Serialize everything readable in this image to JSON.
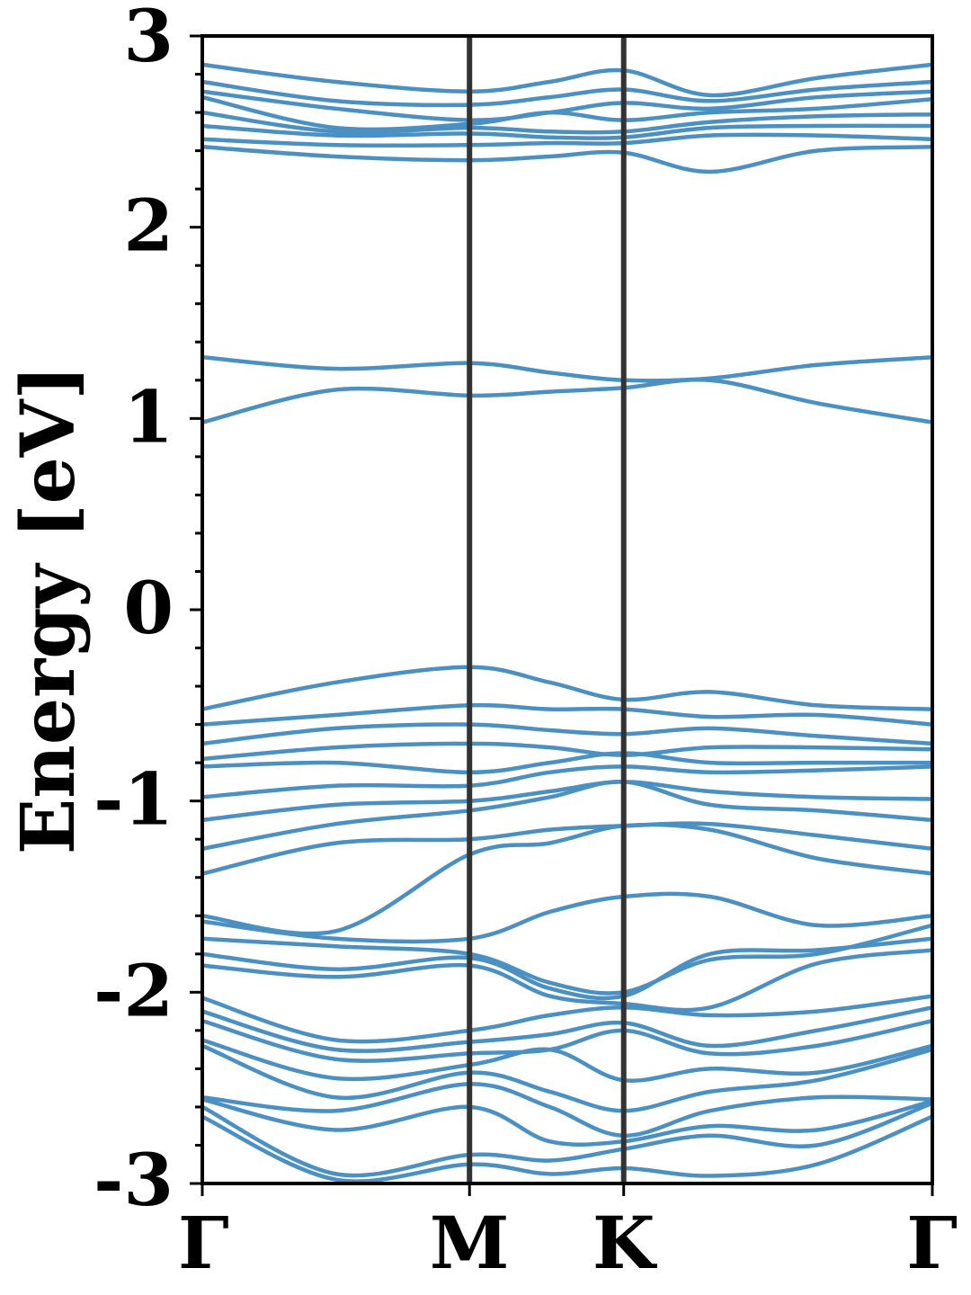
{
  "chart_data": {
    "type": "line",
    "ylabel": "Energy [eV]",
    "xlabel": "",
    "ylim": [
      -3,
      3
    ],
    "yticks": [
      3,
      2,
      1,
      0,
      -1,
      -2,
      -3
    ],
    "yticks_minor_step": 0.2,
    "grid": false,
    "kpoints": [
      {
        "label": "Γ",
        "x": 0.0
      },
      {
        "label": "M",
        "x": 1.0
      },
      {
        "label": "K",
        "x": 1.577
      },
      {
        "label": "Γ",
        "x": 2.732
      }
    ],
    "colors": {
      "band": "#4a90c2",
      "kline": "#333333",
      "axis": "#000000"
    },
    "series": [
      {
        "x": [
          0,
          0.5,
          1.0,
          1.3,
          1.577,
          1.9,
          2.3,
          2.732
        ],
        "values": [
          2.85,
          2.76,
          2.71,
          2.76,
          2.82,
          2.69,
          2.78,
          2.85
        ]
      },
      {
        "x": [
          0,
          0.5,
          1.0,
          1.3,
          1.577,
          1.9,
          2.3,
          2.732
        ],
        "values": [
          2.76,
          2.66,
          2.64,
          2.68,
          2.72,
          2.66,
          2.72,
          2.76
        ]
      },
      {
        "x": [
          0,
          0.5,
          1.0,
          1.3,
          1.577,
          1.9,
          2.3,
          2.732
        ],
        "values": [
          2.71,
          2.62,
          2.56,
          2.6,
          2.65,
          2.62,
          2.68,
          2.71
        ]
      },
      {
        "x": [
          0,
          0.5,
          1.0,
          1.3,
          1.577,
          1.9,
          2.3,
          2.732
        ],
        "values": [
          2.68,
          2.52,
          2.54,
          2.6,
          2.56,
          2.6,
          2.62,
          2.67
        ]
      },
      {
        "x": [
          0,
          0.5,
          1.0,
          1.3,
          1.577,
          1.9,
          2.3,
          2.732
        ],
        "values": [
          2.6,
          2.5,
          2.52,
          2.5,
          2.5,
          2.55,
          2.58,
          2.59
        ]
      },
      {
        "x": [
          0,
          0.5,
          1.0,
          1.3,
          1.577,
          1.9,
          2.3,
          2.732
        ],
        "values": [
          2.53,
          2.48,
          2.49,
          2.47,
          2.47,
          2.52,
          2.53,
          2.53
        ]
      },
      {
        "x": [
          0,
          0.5,
          1.0,
          1.3,
          1.577,
          1.9,
          2.3,
          2.732
        ],
        "values": [
          2.46,
          2.43,
          2.43,
          2.44,
          2.44,
          2.48,
          2.48,
          2.46
        ]
      },
      {
        "x": [
          0,
          0.5,
          1.0,
          1.3,
          1.577,
          1.9,
          2.3,
          2.732
        ],
        "values": [
          2.42,
          2.37,
          2.35,
          2.37,
          2.39,
          2.29,
          2.4,
          2.42
        ]
      },
      {
        "x": [
          0,
          0.5,
          1.0,
          1.3,
          1.577,
          1.9,
          2.3,
          2.732
        ],
        "values": [
          1.32,
          1.26,
          1.29,
          1.24,
          1.2,
          1.21,
          1.28,
          1.32
        ]
      },
      {
        "x": [
          0,
          0.5,
          1.0,
          1.3,
          1.577,
          1.9,
          2.3,
          2.732
        ],
        "values": [
          0.98,
          1.15,
          1.12,
          1.14,
          1.16,
          1.2,
          1.08,
          0.98
        ]
      },
      {
        "x": [
          0,
          0.5,
          1.0,
          1.3,
          1.577,
          1.9,
          2.3,
          2.732
        ],
        "values": [
          -0.52,
          -0.38,
          -0.3,
          -0.38,
          -0.47,
          -0.43,
          -0.5,
          -0.52
        ]
      },
      {
        "x": [
          0,
          0.5,
          1.0,
          1.3,
          1.577,
          1.9,
          2.3,
          2.732
        ],
        "values": [
          -0.6,
          -0.55,
          -0.5,
          -0.52,
          -0.52,
          -0.56,
          -0.55,
          -0.6
        ]
      },
      {
        "x": [
          0,
          0.5,
          1.0,
          1.3,
          1.577,
          1.9,
          2.3,
          2.732
        ],
        "values": [
          -0.7,
          -0.62,
          -0.6,
          -0.63,
          -0.65,
          -0.62,
          -0.66,
          -0.7
        ]
      },
      {
        "x": [
          0,
          0.5,
          1.0,
          1.3,
          1.577,
          1.9,
          2.3,
          2.732
        ],
        "values": [
          -0.78,
          -0.72,
          -0.7,
          -0.72,
          -0.76,
          -0.72,
          -0.72,
          -0.73
        ]
      },
      {
        "x": [
          0,
          0.5,
          1.0,
          1.3,
          1.577,
          1.9,
          2.3,
          2.732
        ],
        "values": [
          -0.82,
          -0.8,
          -0.85,
          -0.8,
          -0.75,
          -0.8,
          -0.8,
          -0.8
        ]
      },
      {
        "x": [
          0,
          0.5,
          1.0,
          1.3,
          1.577,
          1.9,
          2.3,
          2.732
        ],
        "values": [
          -0.98,
          -0.92,
          -0.92,
          -0.85,
          -0.82,
          -0.85,
          -0.84,
          -0.82
        ]
      },
      {
        "x": [
          0,
          0.5,
          1.0,
          1.3,
          1.577,
          1.9,
          2.3,
          2.732
        ],
        "values": [
          -1.1,
          -1.02,
          -1.0,
          -0.95,
          -0.9,
          -0.95,
          -0.98,
          -0.99
        ]
      },
      {
        "x": [
          0,
          0.5,
          1.0,
          1.3,
          1.577,
          1.9,
          2.3,
          2.732
        ],
        "values": [
          -1.25,
          -1.12,
          -1.05,
          -0.98,
          -0.9,
          -1.02,
          -1.05,
          -1.1
        ]
      },
      {
        "x": [
          0,
          0.5,
          1.0,
          1.3,
          1.577,
          1.9,
          2.3,
          2.732
        ],
        "values": [
          -1.38,
          -1.22,
          -1.2,
          -1.15,
          -1.13,
          -1.12,
          -1.18,
          -1.25
        ]
      },
      {
        "x": [
          0,
          0.5,
          1.0,
          1.3,
          1.577,
          1.9,
          2.3,
          2.732
        ],
        "values": [
          -1.6,
          -1.68,
          -1.28,
          -1.22,
          -1.13,
          -1.15,
          -1.3,
          -1.38
        ]
      },
      {
        "x": [
          0,
          0.5,
          1.0,
          1.3,
          1.577,
          1.9,
          2.3,
          2.732
        ],
        "values": [
          -1.63,
          -1.72,
          -1.72,
          -1.58,
          -1.5,
          -1.5,
          -1.65,
          -1.6
        ]
      },
      {
        "x": [
          0,
          0.5,
          1.0,
          1.3,
          1.577,
          1.9,
          2.3,
          2.732
        ],
        "values": [
          -1.72,
          -1.76,
          -1.8,
          -1.95,
          -2.0,
          -1.83,
          -1.8,
          -1.65
        ]
      },
      {
        "x": [
          0,
          0.5,
          1.0,
          1.3,
          1.577,
          1.9,
          2.3,
          2.732
        ],
        "values": [
          -1.8,
          -1.88,
          -1.82,
          -1.98,
          -2.02,
          -1.8,
          -1.78,
          -1.72
        ]
      },
      {
        "x": [
          0,
          0.5,
          1.0,
          1.3,
          1.577,
          1.9,
          2.3,
          2.732
        ],
        "values": [
          -1.86,
          -1.92,
          -1.86,
          -2.02,
          -2.06,
          -2.08,
          -1.85,
          -1.78
        ]
      },
      {
        "x": [
          0,
          0.5,
          1.0,
          1.3,
          1.577,
          1.9,
          2.3,
          2.732
        ],
        "values": [
          -2.03,
          -2.25,
          -2.2,
          -2.12,
          -2.08,
          -2.12,
          -2.1,
          -2.02
        ]
      },
      {
        "x": [
          0,
          0.5,
          1.0,
          1.3,
          1.577,
          1.9,
          2.3,
          2.732
        ],
        "values": [
          -2.1,
          -2.3,
          -2.26,
          -2.22,
          -2.16,
          -2.28,
          -2.2,
          -2.08
        ]
      },
      {
        "x": [
          0,
          0.5,
          1.0,
          1.3,
          1.577,
          1.9,
          2.3,
          2.732
        ],
        "values": [
          -2.15,
          -2.35,
          -2.32,
          -2.3,
          -2.2,
          -2.32,
          -2.28,
          -2.15
        ]
      },
      {
        "x": [
          0,
          0.5,
          1.0,
          1.3,
          1.577,
          1.9,
          2.3,
          2.732
        ],
        "values": [
          -2.25,
          -2.45,
          -2.38,
          -2.3,
          -2.46,
          -2.4,
          -2.42,
          -2.28
        ]
      },
      {
        "x": [
          0,
          0.5,
          1.0,
          1.3,
          1.577,
          1.9,
          2.3,
          2.732
        ],
        "values": [
          -2.28,
          -2.55,
          -2.42,
          -2.52,
          -2.62,
          -2.52,
          -2.46,
          -2.3
        ]
      },
      {
        "x": [
          0,
          0.5,
          1.0,
          1.3,
          1.577,
          1.9,
          2.3,
          2.732
        ],
        "values": [
          -2.55,
          -2.62,
          -2.48,
          -2.6,
          -2.75,
          -2.62,
          -2.55,
          -2.56
        ]
      },
      {
        "x": [
          0,
          0.5,
          1.0,
          1.3,
          1.577,
          1.9,
          2.3,
          2.732
        ],
        "values": [
          -2.56,
          -2.72,
          -2.6,
          -2.78,
          -2.78,
          -2.7,
          -2.72,
          -2.57
        ]
      },
      {
        "x": [
          0,
          0.5,
          1.0,
          1.3,
          1.577,
          1.9,
          2.3,
          2.732
        ],
        "values": [
          -2.6,
          -2.95,
          -2.85,
          -2.88,
          -2.82,
          -2.75,
          -2.8,
          -2.58
        ]
      },
      {
        "x": [
          0,
          0.5,
          1.0,
          1.3,
          1.577,
          1.9,
          2.3,
          2.732
        ],
        "values": [
          -2.65,
          -2.98,
          -2.9,
          -2.95,
          -2.92,
          -2.96,
          -2.9,
          -2.65
        ]
      }
    ]
  }
}
